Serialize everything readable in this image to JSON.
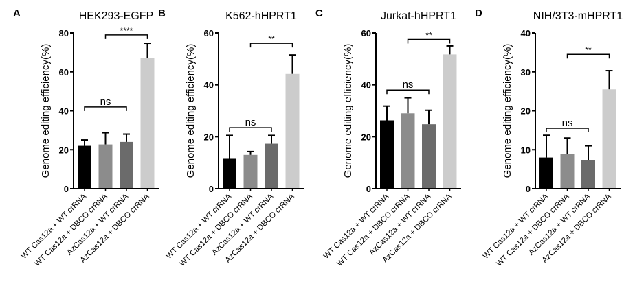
{
  "chart_data": [
    {
      "panel": "A",
      "type": "bar",
      "title": "HEK293-EGFP",
      "ylabel": "Genome editing efficiency(%)",
      "ylim": [
        0,
        80
      ],
      "yticks": [
        0,
        20,
        40,
        60,
        80
      ],
      "categories": [
        "WT Cas12a + WT crRNA",
        "WT Cas12a + DBCO crRNA",
        "AzCas12a + WT crRNA",
        "AzCas12a + DBCO crRNA"
      ],
      "values": [
        22,
        22.7,
        24,
        67
      ],
      "errors": [
        3,
        6,
        4,
        7.7
      ],
      "colors": [
        "#000000",
        "#8c8c8c",
        "#6b6b6b",
        "#cccccc"
      ],
      "brackets": [
        {
          "from": 0,
          "to": 2,
          "label": "ns",
          "y": 42
        },
        {
          "from": 1,
          "to": 3,
          "label": "****",
          "y": 79
        }
      ]
    },
    {
      "panel": "B",
      "type": "bar",
      "title": "K562-hHPRT1",
      "ylabel": "Genome editing efficiency(%)",
      "ylim": [
        0,
        60
      ],
      "yticks": [
        0,
        20,
        40,
        60
      ],
      "categories": [
        "WT Cas12a + WT crRNA",
        "WT Cas12a + DBCO crRNA",
        "AzCas12a + WT crRNA",
        "AzCas12a + DBCO crRNA"
      ],
      "values": [
        11.5,
        13,
        17.3,
        44.2
      ],
      "errors": [
        9,
        1.3,
        3.2,
        7.3
      ],
      "colors": [
        "#000000",
        "#8c8c8c",
        "#6b6b6b",
        "#cccccc"
      ],
      "brackets": [
        {
          "from": 0,
          "to": 2,
          "label": "ns",
          "y": 23.5
        },
        {
          "from": 1,
          "to": 3,
          "label": "**",
          "y": 56
        }
      ]
    },
    {
      "panel": "C",
      "type": "bar",
      "title": "Jurkat-hHPRT1",
      "ylabel": "Genome editing efficiency(%)",
      "ylim": [
        0,
        60
      ],
      "yticks": [
        0,
        20,
        40,
        60
      ],
      "categories": [
        "WT Cas12a + WT crRNA",
        "WT Cas12a + DBCO crRNA",
        "AzCas12a + WT crRNA",
        "AzCas12a + DBCO crRNA"
      ],
      "values": [
        26.3,
        29,
        24.8,
        51.7
      ],
      "errors": [
        5.5,
        6,
        5.4,
        3.3
      ],
      "colors": [
        "#000000",
        "#8c8c8c",
        "#6b6b6b",
        "#cccccc"
      ],
      "brackets": [
        {
          "from": 0,
          "to": 2,
          "label": "ns",
          "y": 38
        },
        {
          "from": 1,
          "to": 3,
          "label": "**",
          "y": 57.5
        }
      ]
    },
    {
      "panel": "D",
      "type": "bar",
      "title": "NIH/3T3-mHPRT1",
      "ylabel": "Genome editing efficiency(%)",
      "ylim": [
        0,
        40
      ],
      "yticks": [
        0,
        10,
        20,
        30,
        40
      ],
      "categories": [
        "WT Cas12a + WT crRNA",
        "WT Cas12a + DBCO crRNA",
        "AzCas12a + WT crRNA",
        "AzCas12a + DBCO crRNA"
      ],
      "values": [
        8,
        8.9,
        7.3,
        25.5
      ],
      "errors": [
        5.7,
        4.1,
        3.7,
        4.8
      ],
      "colors": [
        "#000000",
        "#8c8c8c",
        "#6b6b6b",
        "#cccccc"
      ],
      "brackets": [
        {
          "from": 0,
          "to": 2,
          "label": "ns",
          "y": 15.5
        },
        {
          "from": 1,
          "to": 3,
          "label": "**",
          "y": 34.5
        }
      ]
    }
  ]
}
